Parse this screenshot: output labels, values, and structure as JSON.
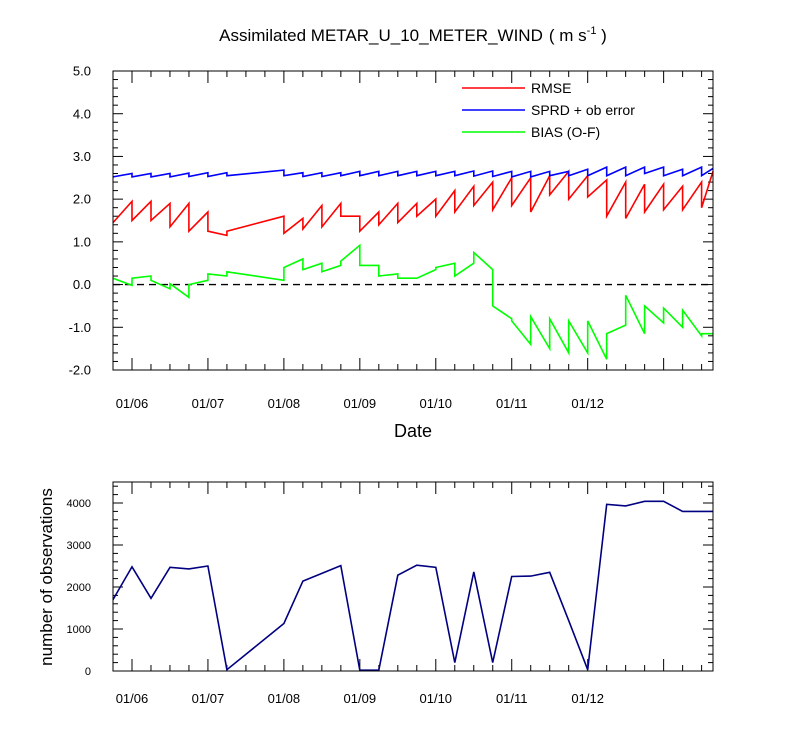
{
  "chart_data": [
    {
      "type": "line",
      "title": "Assimilated METAR_U_10_METER_WIND",
      "title_units": {
        "prefix": "( m s",
        "superscript": "-1",
        "suffix": " )"
      },
      "xlabel": "Date",
      "ylabel": "",
      "ylim": [
        -2.0,
        5.0
      ],
      "yticks": [
        -2.0,
        -1.0,
        0.0,
        1.0,
        2.0,
        3.0,
        4.0,
        5.0
      ],
      "ytick_labels": [
        "-2.0",
        "-1.0",
        "0.0",
        "1.0",
        "2.0",
        "3.0",
        "4.0",
        "5.0"
      ],
      "xlim": [
        5.0,
        12.9
      ],
      "xticks": [
        5.25,
        6.25,
        7.25,
        8.25,
        9.25,
        10.25,
        11.25,
        12.25
      ],
      "xtick_labels": [
        "01/06",
        "01/07",
        "01/08",
        "01/09",
        "01/10",
        "01/11",
        "01/12"
      ],
      "xtick_label_positions": [
        5.25,
        6.25,
        7.25,
        8.25,
        9.25,
        10.25,
        11.25
      ],
      "zero_line": true,
      "legend_position": "top-right",
      "series": [
        {
          "name": "RMSE",
          "color": "#ff0000",
          "x": [
            5.0,
            5.25,
            5.25,
            5.5,
            5.5,
            5.75,
            5.75,
            6.0,
            6.0,
            6.25,
            6.25,
            6.5,
            6.5,
            7.25,
            7.25,
            7.5,
            7.5,
            7.75,
            7.75,
            8.0,
            8.0,
            8.25,
            8.25,
            8.5,
            8.5,
            8.75,
            8.75,
            9.0,
            9.0,
            9.25,
            9.25,
            9.5,
            9.5,
            9.75,
            9.75,
            10.0,
            10.0,
            10.25,
            10.25,
            10.5,
            10.5,
            10.75,
            10.75,
            11.0,
            11.0,
            11.25,
            11.25,
            11.5,
            11.5,
            11.75,
            11.75,
            12.0,
            12.0,
            12.25,
            12.25,
            12.5,
            12.5,
            12.75,
            12.75,
            12.9
          ],
          "values": [
            1.45,
            1.95,
            1.5,
            1.95,
            1.5,
            1.9,
            1.35,
            1.9,
            1.25,
            1.7,
            1.25,
            1.15,
            1.25,
            1.6,
            1.2,
            1.55,
            1.3,
            1.85,
            1.35,
            1.9,
            1.6,
            1.6,
            1.25,
            1.7,
            1.4,
            1.9,
            1.45,
            1.9,
            1.6,
            2.0,
            1.6,
            2.2,
            1.7,
            2.3,
            1.85,
            2.4,
            1.75,
            2.5,
            1.85,
            2.5,
            1.7,
            2.55,
            2.1,
            2.65,
            2.0,
            2.55,
            2.05,
            2.45,
            1.6,
            2.4,
            1.55,
            2.35,
            1.7,
            2.35,
            1.75,
            2.3,
            1.75,
            2.4,
            1.8,
            2.65
          ]
        },
        {
          "name": "SPRD + ob error",
          "color": "#0000ff",
          "x": [
            5.0,
            5.25,
            5.25,
            5.5,
            5.5,
            5.75,
            5.75,
            6.0,
            6.0,
            6.25,
            6.25,
            6.5,
            6.5,
            7.25,
            7.25,
            7.5,
            7.5,
            7.75,
            7.75,
            8.0,
            8.0,
            8.25,
            8.25,
            8.5,
            8.5,
            8.75,
            8.75,
            9.0,
            9.0,
            9.25,
            9.25,
            9.5,
            9.5,
            9.75,
            9.75,
            10.0,
            10.0,
            10.25,
            10.25,
            10.5,
            10.5,
            10.75,
            10.75,
            11.0,
            11.0,
            11.25,
            11.25,
            11.5,
            11.5,
            11.75,
            11.75,
            12.0,
            12.0,
            12.25,
            12.25,
            12.5,
            12.5,
            12.75,
            12.75,
            12.9
          ],
          "values": [
            2.52,
            2.6,
            2.52,
            2.6,
            2.52,
            2.6,
            2.52,
            2.61,
            2.53,
            2.62,
            2.53,
            2.62,
            2.55,
            2.68,
            2.55,
            2.62,
            2.53,
            2.62,
            2.53,
            2.62,
            2.55,
            2.65,
            2.55,
            2.65,
            2.55,
            2.65,
            2.55,
            2.65,
            2.55,
            2.65,
            2.55,
            2.65,
            2.55,
            2.66,
            2.54,
            2.66,
            2.53,
            2.65,
            2.52,
            2.65,
            2.52,
            2.65,
            2.55,
            2.65,
            2.55,
            2.7,
            2.55,
            2.75,
            2.55,
            2.75,
            2.55,
            2.75,
            2.6,
            2.75,
            2.55,
            2.7,
            2.55,
            2.75,
            2.55,
            2.72
          ]
        },
        {
          "name": "BIAS (O-F)",
          "color": "#00ff00",
          "x": [
            5.0,
            5.25,
            5.25,
            5.5,
            5.5,
            5.75,
            5.75,
            6.0,
            6.0,
            6.25,
            6.25,
            6.5,
            6.5,
            7.25,
            7.25,
            7.5,
            7.5,
            7.75,
            7.75,
            8.0,
            8.0,
            8.25,
            8.25,
            8.5,
            8.5,
            8.75,
            8.75,
            9.0,
            9.0,
            9.25,
            9.25,
            9.5,
            9.5,
            9.75,
            9.75,
            10.0,
            10.0,
            10.25,
            10.25,
            10.5,
            10.5,
            10.75,
            10.75,
            11.0,
            11.0,
            11.25,
            11.25,
            11.5,
            11.5,
            11.75,
            11.75,
            12.0,
            12.0,
            12.25,
            12.25,
            12.5,
            12.5,
            12.75,
            12.75,
            12.9
          ],
          "values": [
            0.15,
            -0.02,
            0.15,
            0.2,
            0.1,
            -0.1,
            0.02,
            -0.3,
            0.0,
            0.1,
            0.25,
            0.2,
            0.3,
            0.1,
            0.4,
            0.6,
            0.35,
            0.5,
            0.3,
            0.45,
            0.55,
            0.92,
            0.45,
            0.45,
            0.2,
            0.25,
            0.15,
            0.15,
            0.15,
            0.35,
            0.4,
            0.5,
            0.2,
            0.5,
            0.75,
            0.35,
            -0.5,
            -0.8,
            -0.85,
            -1.4,
            -0.75,
            -1.5,
            -0.8,
            -1.6,
            -0.85,
            -1.6,
            -0.85,
            -1.75,
            -1.15,
            -0.95,
            -0.25,
            -1.15,
            -0.5,
            -0.9,
            -0.55,
            -1.0,
            -0.6,
            -1.2,
            -1.15,
            -1.15
          ]
        }
      ]
    },
    {
      "type": "line",
      "title": "",
      "xlabel": "",
      "ylabel": "number of observations",
      "ylim": [
        0,
        4500
      ],
      "yticks": [
        0,
        1000,
        2000,
        3000,
        4000
      ],
      "ytick_labels": [
        "0",
        "1000",
        "2000",
        "3000",
        "4000"
      ],
      "xlim": [
        5.0,
        12.9
      ],
      "xticks": [
        5.25,
        6.25,
        7.25,
        8.25,
        9.25,
        10.25,
        11.25,
        12.25
      ],
      "xtick_labels": [
        "01/06",
        "01/07",
        "01/08",
        "01/09",
        "01/10",
        "01/11",
        "01/12"
      ],
      "xtick_label_positions": [
        5.25,
        6.25,
        7.25,
        8.25,
        9.25,
        10.25,
        11.25
      ],
      "legend_position": "none",
      "series": [
        {
          "name": "number of observations",
          "color": "#000080",
          "x": [
            5.0,
            5.25,
            5.5,
            5.75,
            6.0,
            6.25,
            6.5,
            7.25,
            7.5,
            8.0,
            8.25,
            8.5,
            8.75,
            9.0,
            9.25,
            9.5,
            9.75,
            10.0,
            10.25,
            10.5,
            10.75,
            11.0,
            11.25,
            11.5,
            11.75,
            12.0,
            12.25,
            12.5,
            12.75,
            12.9
          ],
          "values": [
            1700,
            2480,
            1730,
            2470,
            2430,
            2500,
            30,
            1130,
            2140,
            2510,
            20,
            20,
            2280,
            2520,
            2470,
            200,
            2360,
            200,
            2250,
            2260,
            2350,
            1200,
            30,
            3970,
            3930,
            4040,
            4040,
            3800,
            3800,
            3800
          ]
        }
      ]
    }
  ]
}
